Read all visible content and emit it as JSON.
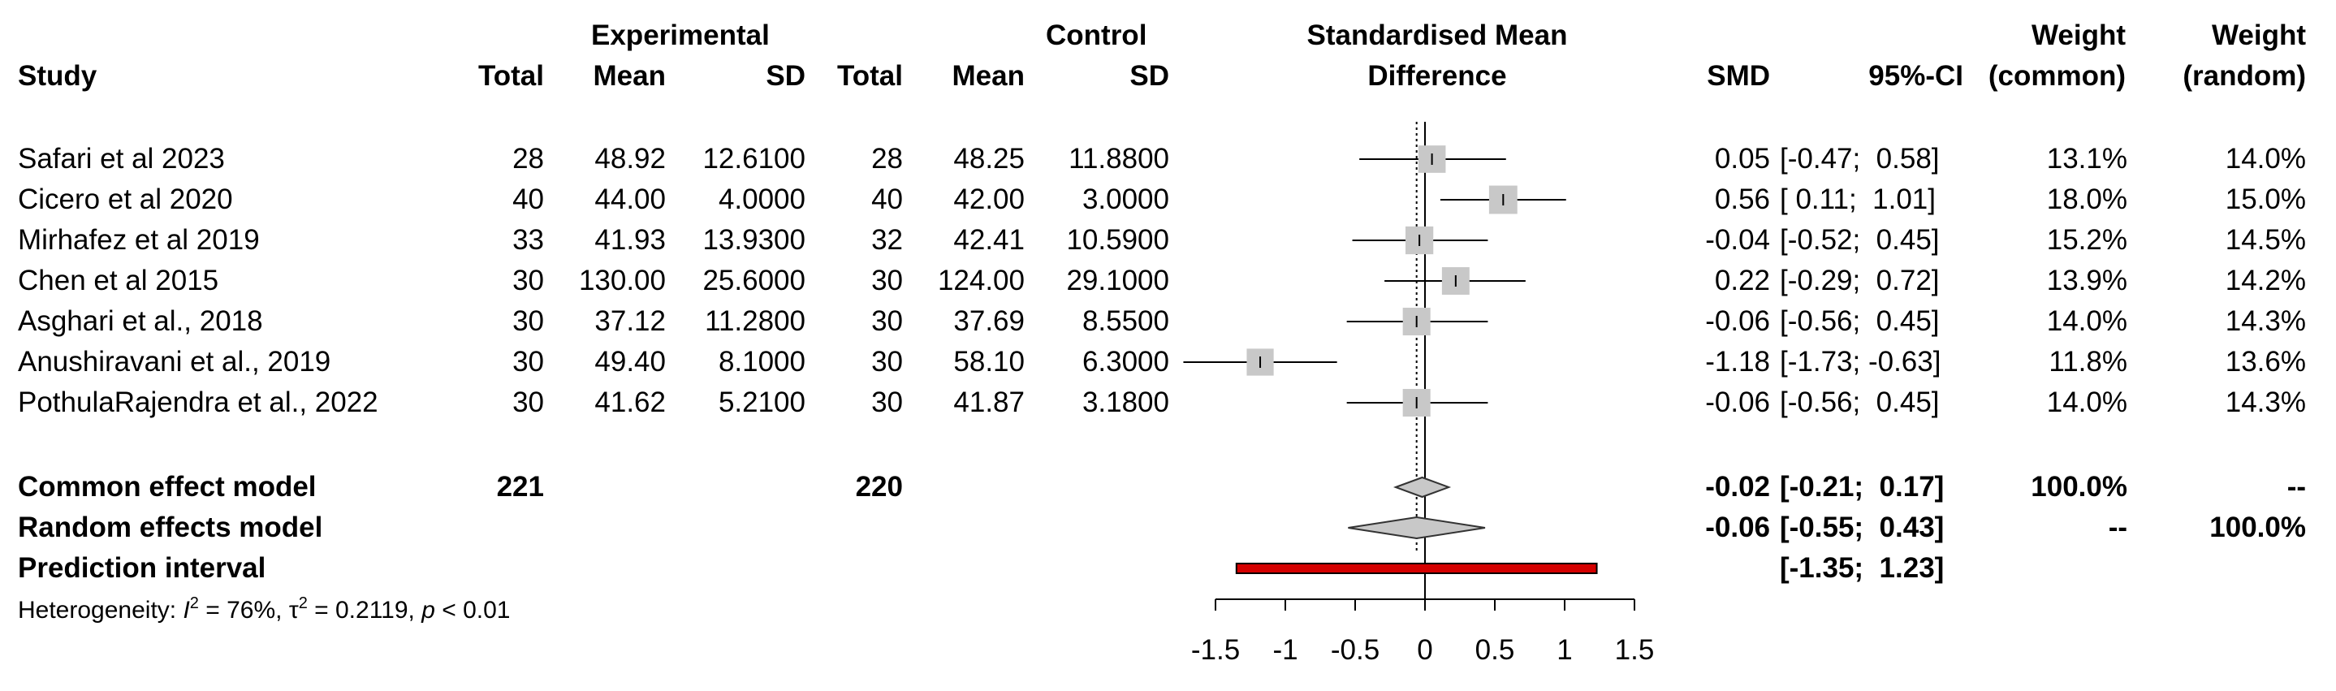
{
  "chart_data": {
    "type": "forest",
    "headers": {
      "group1": "Experimental",
      "group2": "Control",
      "plot_title": [
        "Standardised Mean",
        "Difference"
      ],
      "study": "Study",
      "total": "Total",
      "mean": "Mean",
      "sd": "SD",
      "smd": "SMD",
      "ci": "95%-CI",
      "weight_common": [
        "Weight",
        "(common)"
      ],
      "weight_random": [
        "Weight",
        "(random)"
      ]
    },
    "studies": [
      {
        "study": "Safari et al 2023",
        "e_total": "28",
        "e_mean": "48.92",
        "e_sd": "12.6100",
        "c_total": "28",
        "c_mean": "48.25",
        "c_sd": "11.8800",
        "smd_text": "0.05",
        "ci_text": "[-0.47;  0.58]",
        "w_common": "13.1%",
        "w_random": "14.0%",
        "smd": 0.05,
        "lower": -0.47,
        "upper": 0.58,
        "weight": 14.0
      },
      {
        "study": "Cicero et al 2020",
        "e_total": "40",
        "e_mean": "44.00",
        "e_sd": "4.0000",
        "c_total": "40",
        "c_mean": "42.00",
        "c_sd": "3.0000",
        "smd_text": "0.56",
        "ci_text": "[ 0.11;  1.01]",
        "w_common": "18.0%",
        "w_random": "15.0%",
        "smd": 0.56,
        "lower": 0.11,
        "upper": 1.01,
        "weight": 15.0
      },
      {
        "study": "Mirhafez et al 2019",
        "e_total": "33",
        "e_mean": "41.93",
        "e_sd": "13.9300",
        "c_total": "32",
        "c_mean": "42.41",
        "c_sd": "10.5900",
        "smd_text": "-0.04",
        "ci_text": "[-0.52;  0.45]",
        "w_common": "15.2%",
        "w_random": "14.5%",
        "smd": -0.04,
        "lower": -0.52,
        "upper": 0.45,
        "weight": 14.5
      },
      {
        "study": "Chen et al 2015",
        "e_total": "30",
        "e_mean": "130.00",
        "e_sd": "25.6000",
        "c_total": "30",
        "c_mean": "124.00",
        "c_sd": "29.1000",
        "smd_text": "0.22",
        "ci_text": "[-0.29;  0.72]",
        "w_common": "13.9%",
        "w_random": "14.2%",
        "smd": 0.22,
        "lower": -0.29,
        "upper": 0.72,
        "weight": 14.2
      },
      {
        "study": "Asghari et al., 2018",
        "e_total": "30",
        "e_mean": "37.12",
        "e_sd": "11.2800",
        "c_total": "30",
        "c_mean": "37.69",
        "c_sd": "8.5500",
        "smd_text": "-0.06",
        "ci_text": "[-0.56;  0.45]",
        "w_common": "14.0%",
        "w_random": "14.3%",
        "smd": -0.06,
        "lower": -0.56,
        "upper": 0.45,
        "weight": 14.3
      },
      {
        "study": "Anushiravani et al., 2019",
        "e_total": "30",
        "e_mean": "49.40",
        "e_sd": "8.1000",
        "c_total": "30",
        "c_mean": "58.10",
        "c_sd": "6.3000",
        "smd_text": "-1.18",
        "ci_text": "[-1.73; -0.63]",
        "w_common": "11.8%",
        "w_random": "13.6%",
        "smd": -1.18,
        "lower": -1.73,
        "upper": -0.63,
        "weight": 13.6
      },
      {
        "study": "PothulaRajendra et al., 2022",
        "e_total": "30",
        "e_mean": "41.62",
        "e_sd": "5.2100",
        "c_total": "30",
        "c_mean": "41.87",
        "c_sd": "3.1800",
        "smd_text": "-0.06",
        "ci_text": "[-0.56;  0.45]",
        "w_common": "14.0%",
        "w_random": "14.3%",
        "smd": -0.06,
        "lower": -0.56,
        "upper": 0.45,
        "weight": 14.3
      }
    ],
    "common": {
      "label": "Common effect model",
      "e_total": "221",
      "c_total": "220",
      "smd_text": "-0.02",
      "ci_text": "[-0.21;  0.17]",
      "w_common": "100.0%",
      "w_random": "--",
      "smd": -0.02,
      "lower": -0.21,
      "upper": 0.17
    },
    "random": {
      "label": "Random effects model",
      "smd_text": "-0.06",
      "ci_text": "[-0.55;  0.43]",
      "w_common": "--",
      "w_random": "100.0%",
      "smd": -0.06,
      "lower": -0.55,
      "upper": 0.43
    },
    "prediction": {
      "label": "Prediction interval",
      "ci_text": "[-1.35;  1.23]",
      "lower": -1.35,
      "upper": 1.23
    },
    "heterogeneity": {
      "prefix": "Heterogeneity: ",
      "i2_sym": "I",
      "i2_val": " = 76%, ",
      "tau_sym": "τ",
      "tau_val": " = 0.2119, ",
      "p_sym": "p",
      "p_val": " < 0.01"
    },
    "x_ticks": [
      -1.5,
      -1,
      -0.5,
      0,
      0.5,
      1,
      1.5
    ],
    "x_tick_labels": [
      "-1.5",
      "-1",
      "-0.5",
      "0",
      "0.5",
      "1",
      "1.5"
    ],
    "xlim": [
      -1.5,
      1.5
    ],
    "colors": {
      "square": "#c8c8c8",
      "diamond": "#c8c8c8",
      "prediction_fill": "#d40000",
      "line": "#000000"
    }
  }
}
